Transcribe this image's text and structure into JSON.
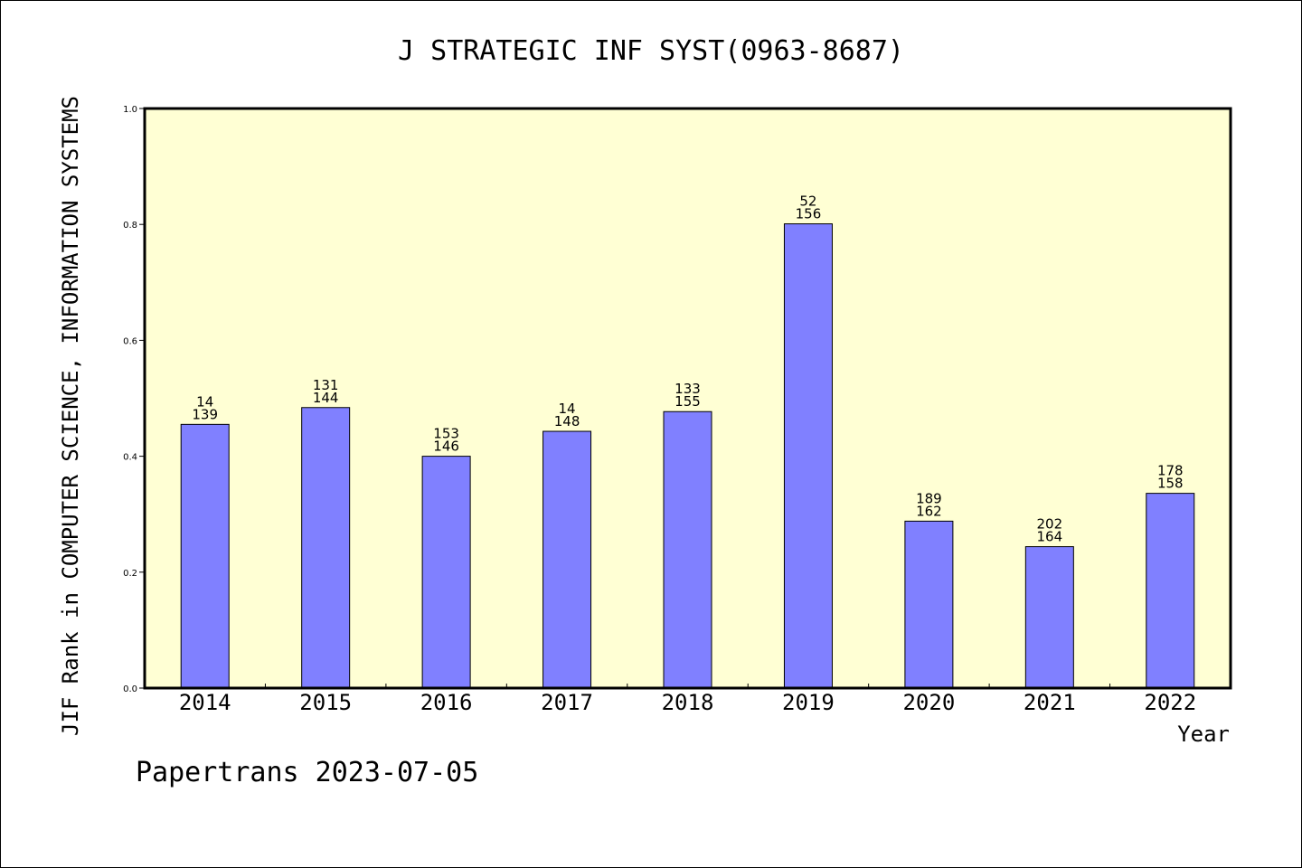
{
  "chart_data": {
    "type": "bar",
    "title": "J STRATEGIC INF SYST(0963-8687)",
    "xlabel": "Year",
    "ylabel": "JIF Rank in COMPUTER SCIENCE, INFORMATION SYSTEMS",
    "categories": [
      "2014",
      "2015",
      "2016",
      "2017",
      "2018",
      "2019",
      "2020",
      "2021",
      "2022"
    ],
    "values": [
      0.455,
      0.484,
      0.4,
      0.443,
      0.477,
      0.801,
      0.288,
      0.244,
      0.336
    ],
    "bar_labels": [
      [
        "14",
        "139"
      ],
      [
        "131",
        "144"
      ],
      [
        "153",
        "146"
      ],
      [
        "14",
        "148"
      ],
      [
        "133",
        "155"
      ],
      [
        "52",
        "156"
      ],
      [
        "189",
        "162"
      ],
      [
        "202",
        "164"
      ],
      [
        "178",
        "158"
      ]
    ],
    "ylim": [
      0,
      1.0
    ],
    "yticks": [
      "0.0",
      "0.2",
      "0.4",
      "0.6",
      "0.8",
      "1.0"
    ],
    "grid": false,
    "colors": {
      "bar": "#8080ff",
      "plot_background": "#ffffd4",
      "axis": "#000000"
    }
  },
  "footer": "Papertrans 2023-07-05"
}
